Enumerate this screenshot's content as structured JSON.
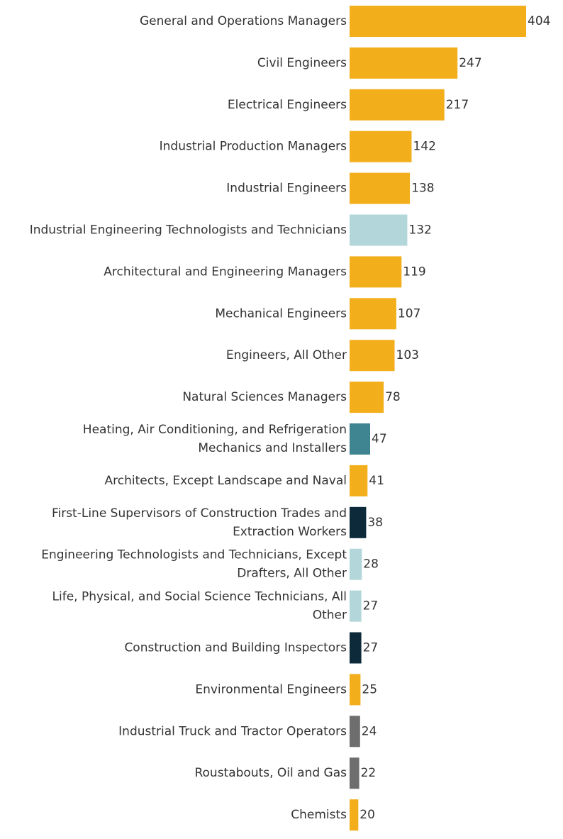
{
  "chart_data": {
    "type": "bar",
    "orientation": "horizontal",
    "title": "",
    "xlabel": "",
    "ylabel": "",
    "grid": false,
    "legend": "none",
    "xlim": [
      0,
      404
    ],
    "categories": [
      [
        "General and Operations Managers"
      ],
      [
        "Civil Engineers"
      ],
      [
        "Electrical Engineers"
      ],
      [
        "Industrial Production Managers"
      ],
      [
        "Industrial Engineers"
      ],
      [
        "Industrial Engineering Technologists and Technicians"
      ],
      [
        "Architectural and Engineering Managers"
      ],
      [
        "Mechanical Engineers"
      ],
      [
        "Engineers, All Other"
      ],
      [
        "Natural Sciences Managers"
      ],
      [
        "Heating, Air Conditioning, and Refrigeration",
        "Mechanics and Installers"
      ],
      [
        "Architects, Except Landscape and Naval"
      ],
      [
        "First-Line Supervisors of Construction Trades and",
        "Extraction Workers"
      ],
      [
        "Engineering Technologists and Technicians, Except",
        "Drafters, All Other"
      ],
      [
        "Life, Physical, and Social Science Technicians, All",
        "Other"
      ],
      [
        "Construction and Building Inspectors"
      ],
      [
        "Environmental Engineers"
      ],
      [
        "Industrial Truck and Tractor Operators"
      ],
      [
        "Roustabouts, Oil and Gas"
      ],
      [
        "Chemists"
      ]
    ],
    "values": [
      404,
      247,
      217,
      142,
      138,
      132,
      119,
      107,
      103,
      78,
      47,
      41,
      38,
      28,
      27,
      27,
      25,
      24,
      22,
      20
    ],
    "bar_colors": [
      "#F2AF1B",
      "#F2AF1B",
      "#F2AF1B",
      "#F2AF1B",
      "#F2AF1B",
      "#B2D6DA",
      "#F2AF1B",
      "#F2AF1B",
      "#F2AF1B",
      "#F2AF1B",
      "#3F8591",
      "#F2AF1B",
      "#0D2A3A",
      "#B2D6DA",
      "#B2D6DA",
      "#0D2A3A",
      "#F2AF1B",
      "#6E6E6E",
      "#6E6E6E",
      "#F2AF1B"
    ]
  }
}
